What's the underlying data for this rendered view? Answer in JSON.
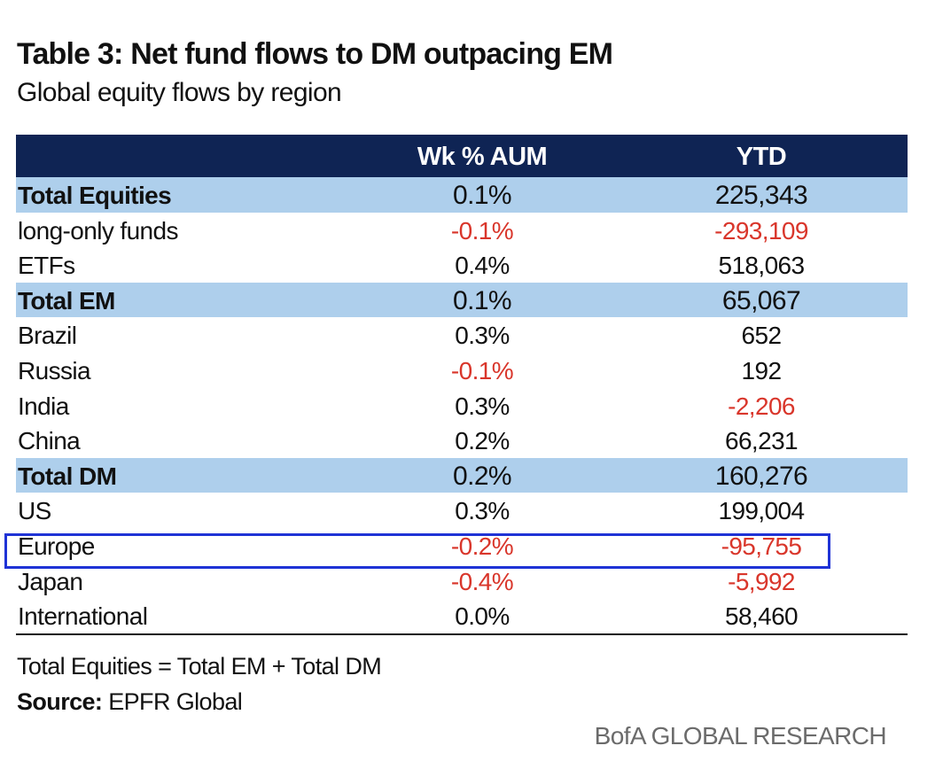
{
  "title": "Table 3: Net fund flows to DM outpacing EM",
  "subtitle": "Global equity flows by region",
  "table": {
    "headers": [
      "",
      "Wk % AUM",
      "YTD"
    ],
    "rows": [
      {
        "label": "Total Equities",
        "wk": "0.1%",
        "ytd": "225,343",
        "total": true,
        "wk_negative": false,
        "ytd_negative": false
      },
      {
        "label": "long-only funds",
        "wk": "-0.1%",
        "ytd": "-293,109",
        "total": false,
        "wk_negative": true,
        "ytd_negative": true
      },
      {
        "label": "ETFs",
        "wk": "0.4%",
        "ytd": "518,063",
        "total": false,
        "wk_negative": false,
        "ytd_negative": false
      },
      {
        "label": "Total EM",
        "wk": "0.1%",
        "ytd": "65,067",
        "total": true,
        "wk_negative": false,
        "ytd_negative": false
      },
      {
        "label": "Brazil",
        "wk": "0.3%",
        "ytd": "652",
        "total": false,
        "wk_negative": false,
        "ytd_negative": false
      },
      {
        "label": "Russia",
        "wk": "-0.1%",
        "ytd": "192",
        "total": false,
        "wk_negative": true,
        "ytd_negative": false
      },
      {
        "label": "India",
        "wk": "0.3%",
        "ytd": "-2,206",
        "total": false,
        "wk_negative": false,
        "ytd_negative": true
      },
      {
        "label": "China",
        "wk": "0.2%",
        "ytd": "66,231",
        "total": false,
        "wk_negative": false,
        "ytd_negative": false
      },
      {
        "label": "Total DM",
        "wk": "0.2%",
        "ytd": "160,276",
        "total": true,
        "wk_negative": false,
        "ytd_negative": false
      },
      {
        "label": "US",
        "wk": "0.3%",
        "ytd": "199,004",
        "total": false,
        "wk_negative": false,
        "ytd_negative": false
      },
      {
        "label": "Europe",
        "wk": "-0.2%",
        "ytd": "-95,755",
        "total": false,
        "wk_negative": true,
        "ytd_negative": true,
        "highlighted": true
      },
      {
        "label": "Japan",
        "wk": "-0.4%",
        "ytd": "-5,992",
        "total": false,
        "wk_negative": true,
        "ytd_negative": true
      },
      {
        "label": "International",
        "wk": "0.0%",
        "ytd": "58,460",
        "total": false,
        "wk_negative": false,
        "ytd_negative": false
      }
    ]
  },
  "footnote": "Total Equities = Total EM + Total DM",
  "source": {
    "label": "Source:",
    "value": "EPFR Global"
  },
  "brand": "BofA GLOBAL RESEARCH",
  "colors": {
    "header_bg": "#0f2454",
    "total_row_bg": "#aecfec",
    "negative_text": "#d9362b",
    "highlight_border": "#1f33d6",
    "brand_text": "#6b6b6b"
  }
}
